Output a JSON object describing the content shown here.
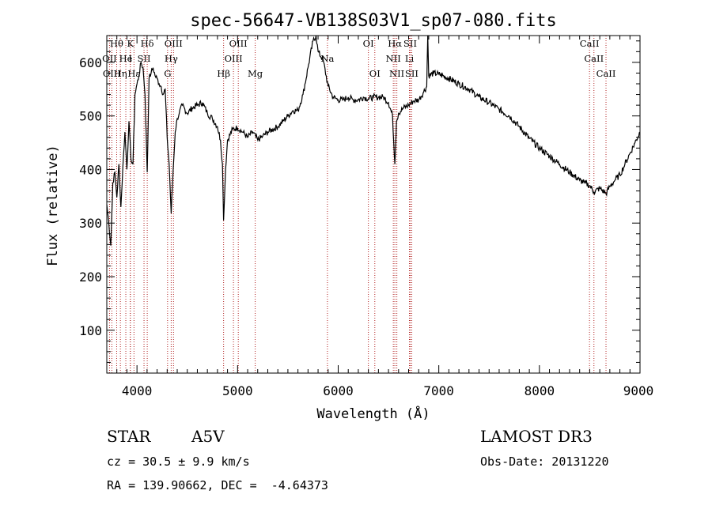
{
  "chart_data": {
    "type": "line",
    "title": "spec-56647-VB138S03V1_sp07-080.fits",
    "xlabel": "Wavelength (Å)",
    "ylabel": "Flux (relative)",
    "xlim": [
      3700,
      9000
    ],
    "ylim": [
      20,
      650
    ],
    "xticks": [
      4000,
      5000,
      6000,
      7000,
      8000,
      9000
    ],
    "yticks": [
      100,
      200,
      300,
      400,
      500,
      600
    ],
    "series_color": "#000000",
    "line_marker_color": "#b22222",
    "spectrum": [
      [
        3700,
        335
      ],
      [
        3720,
        300
      ],
      [
        3740,
        258
      ],
      [
        3760,
        375
      ],
      [
        3780,
        395
      ],
      [
        3800,
        348
      ],
      [
        3820,
        410
      ],
      [
        3840,
        330
      ],
      [
        3860,
        405
      ],
      [
        3880,
        470
      ],
      [
        3900,
        400
      ],
      [
        3920,
        490
      ],
      [
        3940,
        420
      ],
      [
        3960,
        410
      ],
      [
        3980,
        540
      ],
      [
        4000,
        560
      ],
      [
        4020,
        575
      ],
      [
        4040,
        600
      ],
      [
        4060,
        590
      ],
      [
        4080,
        540
      ],
      [
        4102,
        395
      ],
      [
        4120,
        570
      ],
      [
        4140,
        580
      ],
      [
        4160,
        590
      ],
      [
        4180,
        575
      ],
      [
        4200,
        570
      ],
      [
        4220,
        560
      ],
      [
        4240,
        555
      ],
      [
        4260,
        540
      ],
      [
        4280,
        550
      ],
      [
        4300,
        460
      ],
      [
        4320,
        410
      ],
      [
        4340,
        318
      ],
      [
        4360,
        400
      ],
      [
        4380,
        470
      ],
      [
        4400,
        495
      ],
      [
        4420,
        505
      ],
      [
        4450,
        520
      ],
      [
        4500,
        505
      ],
      [
        4550,
        515
      ],
      [
        4600,
        520
      ],
      [
        4650,
        525
      ],
      [
        4700,
        505
      ],
      [
        4750,
        495
      ],
      [
        4800,
        480
      ],
      [
        4830,
        455
      ],
      [
        4850,
        410
      ],
      [
        4861,
        305
      ],
      [
        4880,
        400
      ],
      [
        4900,
        455
      ],
      [
        4950,
        475
      ],
      [
        5000,
        478
      ],
      [
        5050,
        470
      ],
      [
        5100,
        460
      ],
      [
        5150,
        470
      ],
      [
        5200,
        455
      ],
      [
        5250,
        462
      ],
      [
        5300,
        470
      ],
      [
        5350,
        475
      ],
      [
        5400,
        480
      ],
      [
        5450,
        490
      ],
      [
        5500,
        500
      ],
      [
        5550,
        510
      ],
      [
        5600,
        510
      ],
      [
        5650,
        540
      ],
      [
        5700,
        590
      ],
      [
        5750,
        640
      ],
      [
        5780,
        650
      ],
      [
        5800,
        620
      ],
      [
        5850,
        605
      ],
      [
        5900,
        555
      ],
      [
        5950,
        535
      ],
      [
        6000,
        530
      ],
      [
        6050,
        530
      ],
      [
        6100,
        535
      ],
      [
        6150,
        530
      ],
      [
        6200,
        530
      ],
      [
        6250,
        535
      ],
      [
        6300,
        532
      ],
      [
        6350,
        535
      ],
      [
        6400,
        535
      ],
      [
        6450,
        535
      ],
      [
        6500,
        525
      ],
      [
        6540,
        500
      ],
      [
        6563,
        410
      ],
      [
        6580,
        490
      ],
      [
        6600,
        505
      ],
      [
        6650,
        515
      ],
      [
        6700,
        520
      ],
      [
        6750,
        528
      ],
      [
        6800,
        530
      ],
      [
        6850,
        545
      ],
      [
        6880,
        555
      ],
      [
        6890,
        650
      ],
      [
        6900,
        575
      ],
      [
        6950,
        580
      ],
      [
        7000,
        578
      ],
      [
        7100,
        570
      ],
      [
        7200,
        560
      ],
      [
        7300,
        550
      ],
      [
        7400,
        535
      ],
      [
        7500,
        525
      ],
      [
        7600,
        512
      ],
      [
        7700,
        500
      ],
      [
        7800,
        480
      ],
      [
        7900,
        458
      ],
      [
        8000,
        440
      ],
      [
        8100,
        425
      ],
      [
        8200,
        410
      ],
      [
        8300,
        395
      ],
      [
        8400,
        380
      ],
      [
        8450,
        375
      ],
      [
        8500,
        370
      ],
      [
        8542,
        358
      ],
      [
        8600,
        365
      ],
      [
        8662,
        355
      ],
      [
        8700,
        368
      ],
      [
        8750,
        380
      ],
      [
        8800,
        390
      ],
      [
        8850,
        410
      ],
      [
        8900,
        430
      ],
      [
        8950,
        450
      ],
      [
        9000,
        470
      ]
    ],
    "lines": [
      {
        "label": "Hθ",
        "wave": 3798,
        "row": 0
      },
      {
        "label": "K",
        "wave": 3934,
        "row": 0
      },
      {
        "label": "Hδ",
        "wave": 4102,
        "row": 0
      },
      {
        "label": "OIII",
        "wave": 4363,
        "row": 0
      },
      {
        "label": "OIII",
        "wave": 5007,
        "row": 0
      },
      {
        "label": "OI",
        "wave": 6300,
        "row": 0
      },
      {
        "label": "Hα",
        "wave": 6563,
        "row": 0
      },
      {
        "label": "SII",
        "wave": 6716,
        "row": 0
      },
      {
        "label": "CaII",
        "wave": 8498,
        "row": 0
      },
      {
        "label": "OII",
        "wave": 3727,
        "row": 1
      },
      {
        "label": "He",
        "wave": 3889,
        "row": 1
      },
      {
        "label": "I",
        "wave": 3933,
        "row": 1
      },
      {
        "label": "SII",
        "wave": 4070,
        "row": 1
      },
      {
        "label": "Hγ",
        "wave": 4340,
        "row": 1
      },
      {
        "label": "OIII",
        "wave": 4959,
        "row": 1
      },
      {
        "label": "Na",
        "wave": 5893,
        "row": 1
      },
      {
        "label": "NII",
        "wave": 6548,
        "row": 1
      },
      {
        "label": "Li",
        "wave": 6708,
        "row": 1
      },
      {
        "label": "CaII",
        "wave": 8542,
        "row": 1
      },
      {
        "label": "OIII",
        "wave": 3750,
        "row": 2
      },
      {
        "label": "Hη",
        "wave": 3835,
        "row": 2
      },
      {
        "label": "Hε",
        "wave": 3970,
        "row": 2
      },
      {
        "label": "G",
        "wave": 4304,
        "row": 2
      },
      {
        "label": "Hβ",
        "wave": 4861,
        "row": 2
      },
      {
        "label": "Mg",
        "wave": 5175,
        "row": 2
      },
      {
        "label": "OI",
        "wave": 6364,
        "row": 2
      },
      {
        "label": "NII",
        "wave": 6583,
        "row": 2
      },
      {
        "label": "SII",
        "wave": 6731,
        "row": 2
      },
      {
        "label": "CaII",
        "wave": 8662,
        "row": 2
      }
    ]
  },
  "footer": {
    "class": "STAR",
    "subclass": "A5V",
    "survey": "LAMOST DR3",
    "cz": "cz = 30.5 ± 9.9 km/s",
    "obs_date": "Obs-Date: 20131220",
    "radec": "RA = 139.90662, DEC =  -4.64373"
  }
}
